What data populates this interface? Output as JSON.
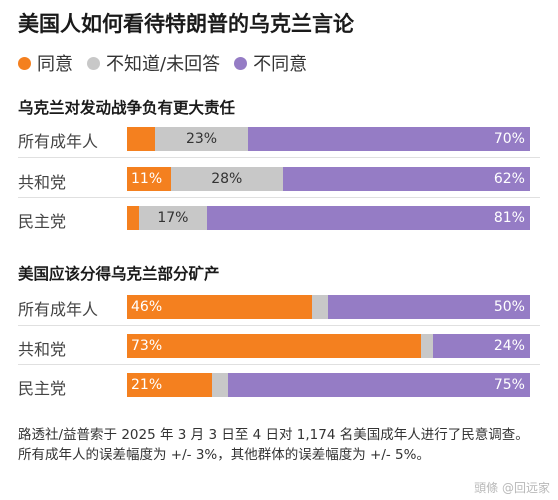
{
  "title": "美国人如何看待特朗普的乌克兰言论",
  "legend": {
    "agree": "同意",
    "unsure": "不知道/未回答",
    "disagree": "不同意"
  },
  "colors": {
    "agree": "#f4801f",
    "unsure": "#c8c8c8",
    "disagree": "#957cc5"
  },
  "footnote": "路透社/益普索于 2025 年 3 月 3 日至 4 日对 1,174 名美国成年人进行了民意调查。所有成年人的误差幅度为 +/- 3%，其他群体的误差幅度为 +/- 5%。",
  "watermark": "頭條 @回远家",
  "chart_data": [
    {
      "type": "bar",
      "orientation": "horizontal",
      "stacked": true,
      "title": "乌克兰对发动战争负有更大责任",
      "categories": [
        "所有成年人",
        "共和党",
        "民主党"
      ],
      "series": [
        {
          "name": "同意",
          "values": [
            7,
            11,
            3
          ],
          "labels": [
            "",
            "11%",
            ""
          ]
        },
        {
          "name": "不知道/未回答",
          "values": [
            23,
            28,
            17
          ],
          "labels": [
            "23%",
            "28%",
            "17%"
          ]
        },
        {
          "name": "不同意",
          "values": [
            70,
            62,
            81
          ],
          "labels": [
            "70%",
            "62%",
            "81%"
          ]
        }
      ]
    },
    {
      "type": "bar",
      "orientation": "horizontal",
      "stacked": true,
      "title": "美国应该分得乌克兰部分矿产",
      "categories": [
        "所有成年人",
        "共和党",
        "民主党"
      ],
      "series": [
        {
          "name": "同意",
          "values": [
            46,
            73,
            21
          ],
          "labels": [
            "46%",
            "73%",
            "21%"
          ]
        },
        {
          "name": "不知道/未回答",
          "values": [
            4,
            3,
            4
          ],
          "labels": [
            "",
            "",
            ""
          ]
        },
        {
          "name": "不同意",
          "values": [
            50,
            24,
            75
          ],
          "labels": [
            "50%",
            "24%",
            "75%"
          ]
        }
      ]
    }
  ]
}
